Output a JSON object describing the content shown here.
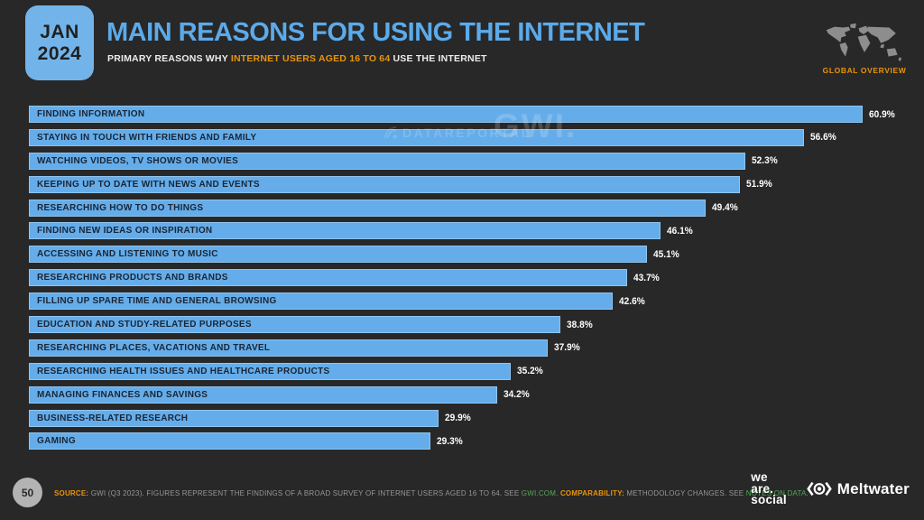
{
  "header": {
    "badge": {
      "month": "JAN",
      "year": "2024"
    },
    "title": "MAIN REASONS FOR USING THE INTERNET",
    "subtitle": {
      "prefix": "PRIMARY REASONS WHY ",
      "highlight": "INTERNET USERS AGED 16 TO 64",
      "suffix": " USE THE INTERNET"
    },
    "scope_label": "GLOBAL OVERVIEW"
  },
  "watermarks": {
    "dataportal": "DATAREPORTAL",
    "gwi": "GWI."
  },
  "chart_data": {
    "type": "bar",
    "orientation": "horizontal",
    "title": "MAIN REASONS FOR USING THE INTERNET",
    "categories": [
      "FINDING INFORMATION",
      "STAYING IN TOUCH WITH FRIENDS AND FAMILY",
      "WATCHING VIDEOS, TV SHOWS OR MOVIES",
      "KEEPING UP TO DATE WITH NEWS AND EVENTS",
      "RESEARCHING HOW TO DO THINGS",
      "FINDING NEW IDEAS OR INSPIRATION",
      "ACCESSING AND LISTENING TO MUSIC",
      "RESEARCHING PRODUCTS AND BRANDS",
      "FILLING UP SPARE TIME AND GENERAL BROWSING",
      "EDUCATION AND STUDY-RELATED PURPOSES",
      "RESEARCHING PLACES, VACATIONS AND TRAVEL",
      "RESEARCHING HEALTH ISSUES AND HEALTHCARE PRODUCTS",
      "MANAGING FINANCES AND SAVINGS",
      "BUSINESS-RELATED RESEARCH",
      "GAMING"
    ],
    "values": [
      60.9,
      56.6,
      52.3,
      51.9,
      49.4,
      46.1,
      45.1,
      43.7,
      42.6,
      38.8,
      37.9,
      35.2,
      34.2,
      29.9,
      29.3
    ],
    "value_suffix": "%",
    "xlim": [
      0,
      63.25
    ],
    "grid": false,
    "legend": false,
    "bar_color": "#64adea",
    "label_color": "#1b2433",
    "value_color": "#ffffff"
  },
  "footer": {
    "page_number": "50",
    "source": {
      "source_label": "SOURCE:",
      "source_text": " GWI (Q3 2023). FIGURES REPRESENT THE FINDINGS OF A BROAD SURVEY OF INTERNET USERS AGED 16 TO 64. SEE ",
      "source_link": "GWI.COM",
      "mid_text": ". ",
      "comparability_label": "COMPARABILITY:",
      "comparability_text": " METHODOLOGY CHANGES. SEE ",
      "notes_link": "NOTES ON DATA",
      "end_text": "."
    },
    "logos": {
      "we_are_social": {
        "line1": "we",
        "line2": "are.",
        "line3": "social"
      },
      "meltwater": "Meltwater"
    }
  },
  "colors": {
    "background": "#282828",
    "accent_blue": "#64adea",
    "accent_orange": "#e8940c",
    "link_green": "#55a85f",
    "muted_gray": "#969696",
    "badge_blue": "#72b4ea"
  }
}
